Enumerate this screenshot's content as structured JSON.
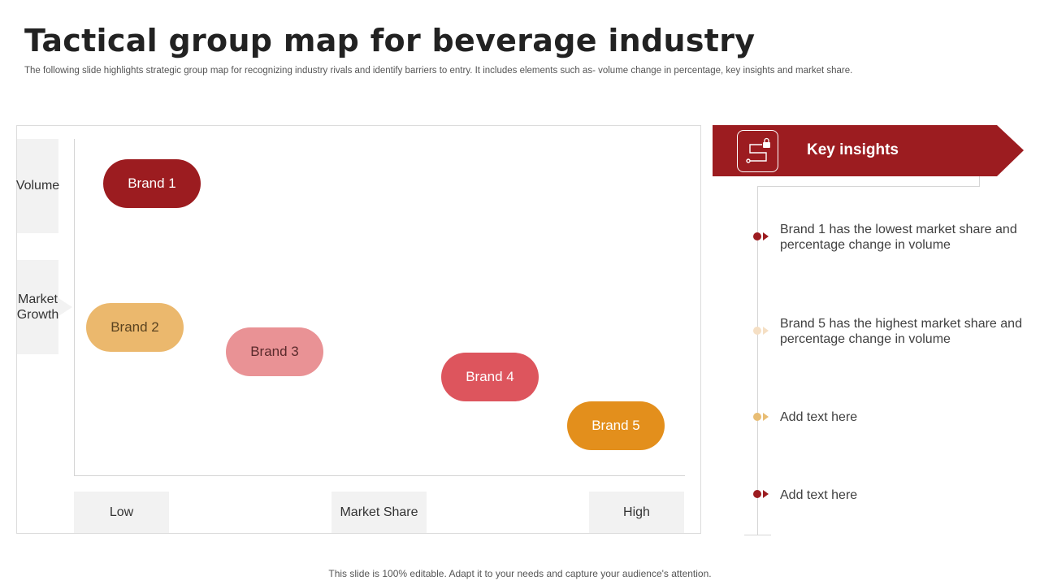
{
  "slide": {
    "title": "Tactical group map for beverage industry",
    "subtitle": "The following slide highlights strategic group map for recognizing industry rivals and identify barriers to entry. It includes elements such as- volume change in percentage, key insights and market share.",
    "footer": "This slide is 100% editable. Adapt it to your needs and capture your audience's attention."
  },
  "map": {
    "y_axis": {
      "top_label": "Volume",
      "mid_label": "Market Growth"
    },
    "x_axis": {
      "low_label": "Low",
      "mid_label": "Market Share",
      "high_label": "High"
    },
    "brands": [
      {
        "label": "Brand 1",
        "color": "#9c1c20"
      },
      {
        "label": "Brand 2",
        "color": "#ebb86d"
      },
      {
        "label": "Brand 3",
        "color": "#e99295"
      },
      {
        "label": "Brand 4",
        "color": "#dd555d"
      },
      {
        "label": "Brand 5",
        "color": "#e38f1c"
      }
    ]
  },
  "insights": {
    "title": "Key insights",
    "header_icon": "circuit-lock-icon",
    "accent_color": "#9c1c20",
    "items": [
      {
        "text": "Brand 1 has the lowest market share and percentage change in volume",
        "color": "#9c1c20"
      },
      {
        "text": "Brand 5 has the highest market share and percentage change in volume",
        "color": "#f5dfc4"
      },
      {
        "text": "Add text here",
        "color": "#e8bd74"
      },
      {
        "text": "Add text here",
        "color": "#9c1c20"
      }
    ]
  }
}
